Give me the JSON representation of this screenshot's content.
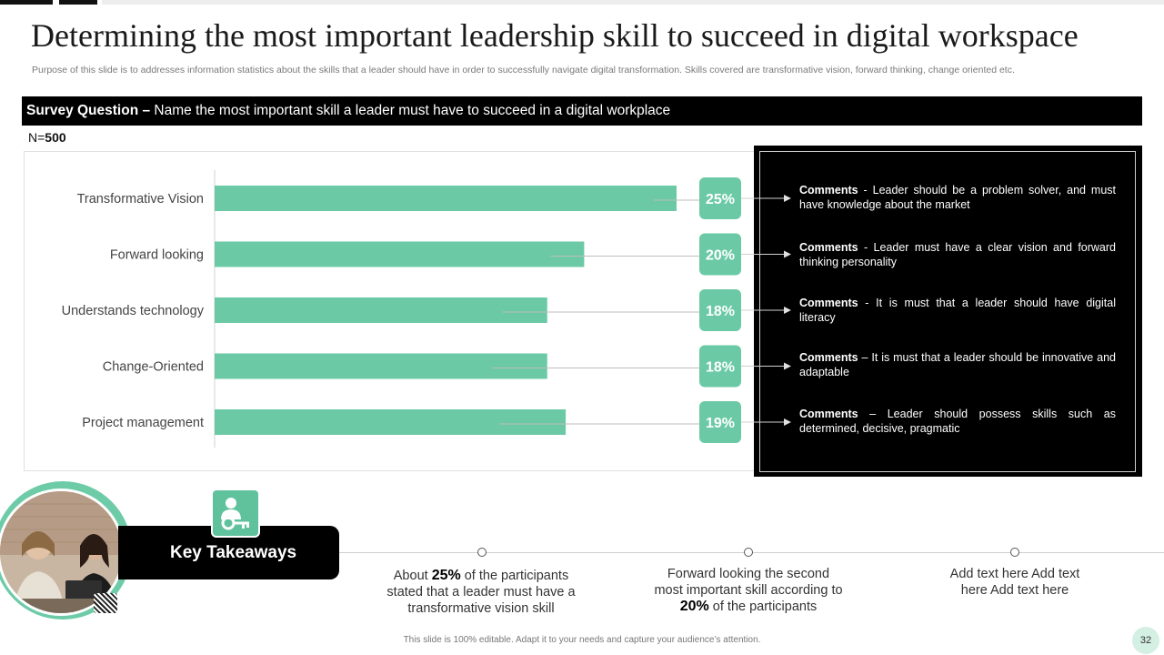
{
  "title": "Determining the most important leadership skill to succeed in digital workspace",
  "subtitle": "Purpose of this slide is to addresses information statistics about the skills that a leader should have in order to successfully navigate digital transformation. Skills covered are transformative vision, forward thinking, change oriented etc.",
  "survey": {
    "label": "Survey Question –",
    "question": " Name the most important skill a leader must have to succeed in a digital workplace"
  },
  "sample": {
    "prefix": "N=",
    "value": "500"
  },
  "colors": {
    "accent": "#6bcaa5",
    "dark": "#000000",
    "page_bg": "#ffffff"
  },
  "chart_data": {
    "type": "bar",
    "orientation": "horizontal",
    "title": "",
    "xlabel": "",
    "ylabel": "",
    "xlim": [
      0,
      25
    ],
    "categories": [
      "Transformative Vision",
      "Forward looking",
      "Understands technology",
      "Change-Oriented",
      "Project management"
    ],
    "values": [
      25,
      20,
      18,
      18,
      19
    ],
    "value_labels": [
      "25%",
      "20%",
      "18%",
      "18%",
      "19%"
    ],
    "grid": false
  },
  "comments": [
    {
      "label": "Comments",
      "text": " - Leader should be a problem solver, and must have knowledge about the market"
    },
    {
      "label": "Comments",
      "text": " - Leader must have a clear vision and forward thinking personality"
    },
    {
      "label": "Comments",
      "text": " - It is must that a leader should have digital literacy"
    },
    {
      "label": "Comments",
      "text": " – It is must that a leader should be innovative and adaptable"
    },
    {
      "label": "Comments",
      "text": " – Leader should possess skills such as determined, decisive, pragmatic"
    }
  ],
  "key_takeaways": {
    "heading": "Key Takeaways",
    "icon": "people-key-icon",
    "items": [
      {
        "pre": "About ",
        "bold": "25%",
        "post": " of the participants stated that a leader must have a transformative vision skill"
      },
      {
        "pre": "Forward looking the second most important skill according to ",
        "bold": "20%",
        "post": " of the participants"
      },
      {
        "pre": "Add text here Add text here Add text here",
        "bold": "",
        "post": ""
      }
    ]
  },
  "footer": "This slide is 100% editable. Adapt it to your needs and capture your audience’s attention.",
  "page_number": "32"
}
